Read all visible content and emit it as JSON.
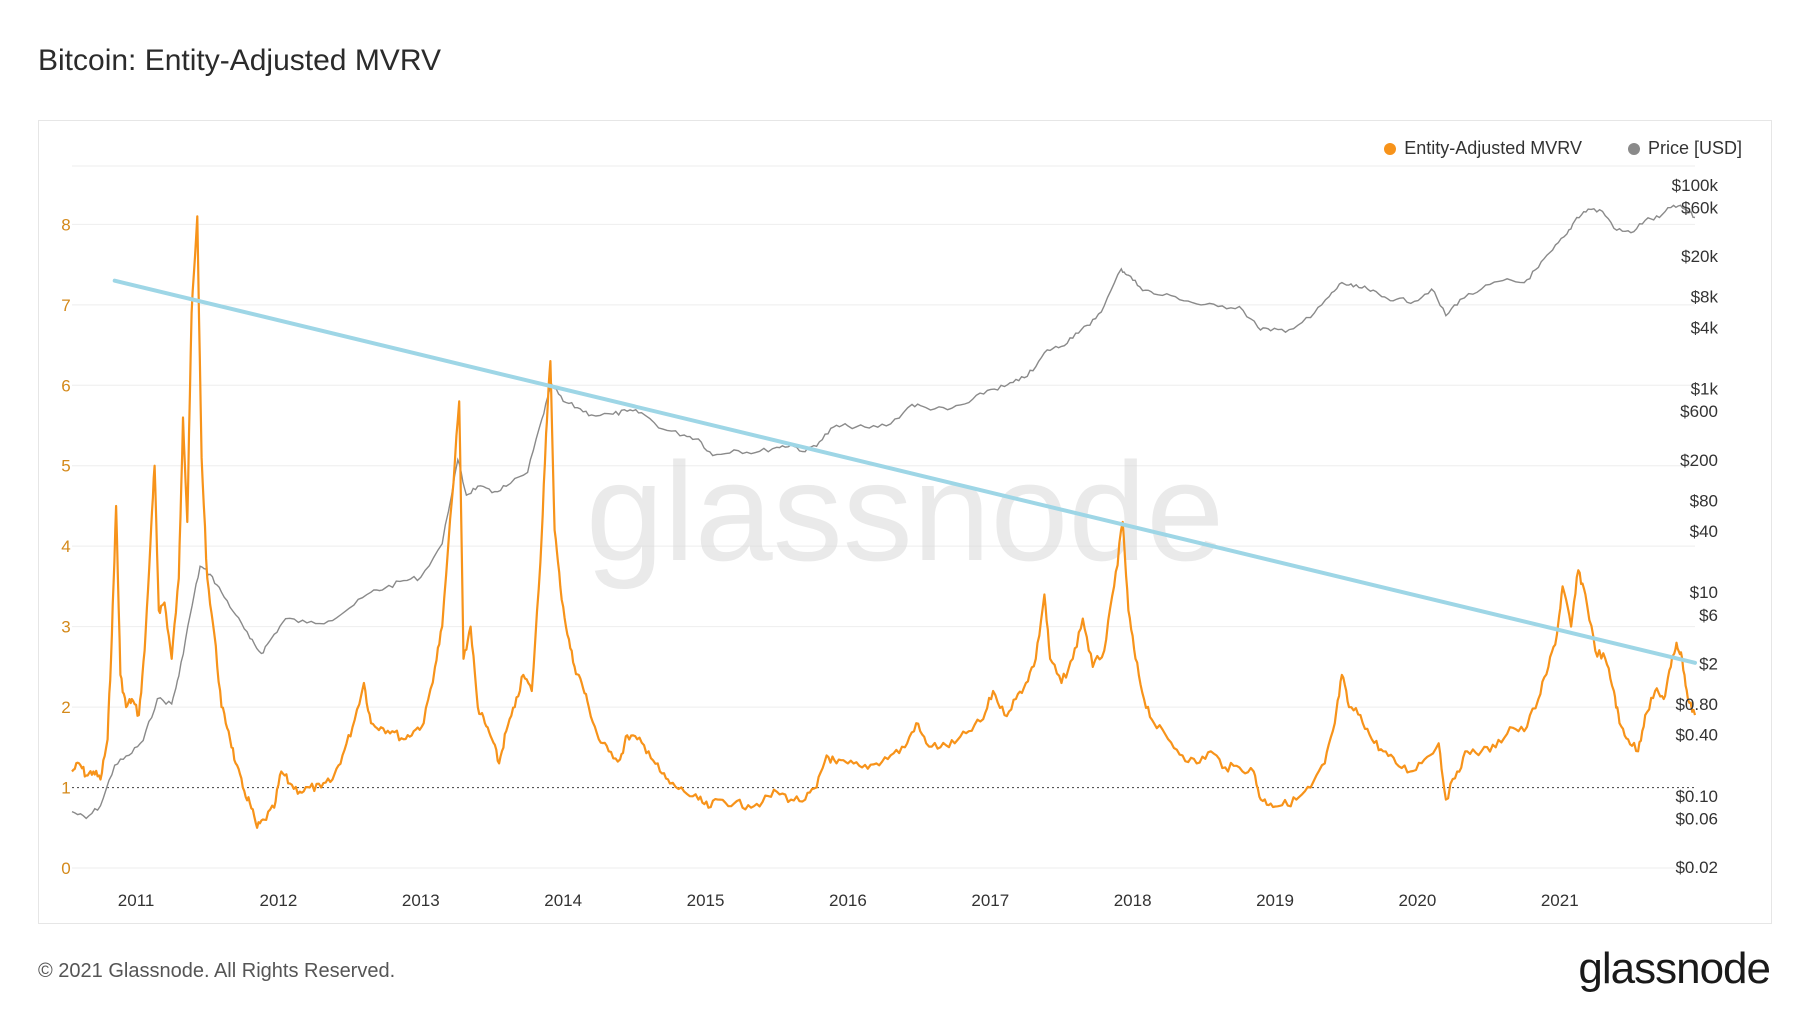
{
  "title": "Bitcoin: Entity-Adjusted MVRV",
  "footer": "© 2021 Glassnode. All Rights Reserved.",
  "brand": "glassnode",
  "watermark": "glassnode",
  "colors": {
    "mvrv": "#f7931a",
    "price": "#8a8a8a",
    "trend": "#9ed6e6",
    "grid": "#eeeeee",
    "left_axis": "#d4891a"
  },
  "chart_data": {
    "type": "line",
    "legend": [
      "Entity-Adjusted MVRV",
      "Price [USD]"
    ],
    "legend_position": "top-right",
    "grid": true,
    "x_ticks": [
      "2011",
      "2012",
      "2013",
      "2014",
      "2015",
      "2016",
      "2017",
      "2018",
      "2019",
      "2020",
      "2021"
    ],
    "x_range": [
      2010.55,
      2021.95
    ],
    "left_axis": {
      "ticks": [
        "0",
        "1",
        "2",
        "3",
        "4",
        "5",
        "6",
        "7",
        "8"
      ],
      "range": [
        0,
        8.8
      ]
    },
    "right_axis": {
      "scale": "log",
      "ticks": [
        "$100k",
        "$60k",
        "$20k",
        "$8k",
        "$4k",
        "$1k",
        "$600",
        "$200",
        "$80",
        "$40",
        "$10",
        "$6",
        "$2",
        "$0.80",
        "$0.40",
        "$0.10",
        "$0.06",
        "$0.02"
      ],
      "tick_values": [
        100000,
        60000,
        20000,
        8000,
        4000,
        1000,
        600,
        200,
        80,
        40,
        10,
        6,
        2,
        0.8,
        0.4,
        0.1,
        0.06,
        0.02
      ]
    },
    "reference_line": {
      "value": 1,
      "style": "dotted"
    },
    "trend_line": {
      "from": [
        2010.85,
        7.3
      ],
      "to": [
        2021.95,
        2.55
      ]
    },
    "series": [
      {
        "name": "Entity-Adjusted MVRV",
        "axis": "left",
        "points": [
          [
            2010.55,
            1.2
          ],
          [
            2010.6,
            1.3
          ],
          [
            2010.65,
            1.15
          ],
          [
            2010.7,
            1.2
          ],
          [
            2010.75,
            1.1
          ],
          [
            2010.8,
            1.6
          ],
          [
            2010.83,
            2.9
          ],
          [
            2010.86,
            4.5
          ],
          [
            2010.89,
            2.4
          ],
          [
            2010.93,
            2.0
          ],
          [
            2010.97,
            2.1
          ],
          [
            2011.02,
            1.9
          ],
          [
            2011.06,
            2.7
          ],
          [
            2011.1,
            4.0
          ],
          [
            2011.13,
            5.0
          ],
          [
            2011.16,
            3.2
          ],
          [
            2011.2,
            3.3
          ],
          [
            2011.25,
            2.6
          ],
          [
            2011.3,
            3.6
          ],
          [
            2011.33,
            5.6
          ],
          [
            2011.36,
            4.3
          ],
          [
            2011.39,
            6.9
          ],
          [
            2011.43,
            8.1
          ],
          [
            2011.46,
            5.1
          ],
          [
            2011.5,
            3.6
          ],
          [
            2011.55,
            2.9
          ],
          [
            2011.6,
            2.0
          ],
          [
            2011.65,
            1.7
          ],
          [
            2011.7,
            1.3
          ],
          [
            2011.75,
            1.0
          ],
          [
            2011.8,
            0.8
          ],
          [
            2011.85,
            0.5
          ],
          [
            2011.9,
            0.6
          ],
          [
            2011.97,
            0.75
          ],
          [
            2012.02,
            1.2
          ],
          [
            2012.08,
            1.05
          ],
          [
            2012.15,
            0.95
          ],
          [
            2012.22,
            1.0
          ],
          [
            2012.3,
            1.0
          ],
          [
            2012.38,
            1.1
          ],
          [
            2012.45,
            1.4
          ],
          [
            2012.52,
            1.75
          ],
          [
            2012.6,
            2.3
          ],
          [
            2012.65,
            1.8
          ],
          [
            2012.72,
            1.75
          ],
          [
            2012.8,
            1.7
          ],
          [
            2012.88,
            1.6
          ],
          [
            2012.95,
            1.7
          ],
          [
            2013.02,
            1.8
          ],
          [
            2013.1,
            2.5
          ],
          [
            2013.15,
            3.0
          ],
          [
            2013.22,
            4.6
          ],
          [
            2013.27,
            5.8
          ],
          [
            2013.3,
            2.6
          ],
          [
            2013.35,
            3.0
          ],
          [
            2013.4,
            2.0
          ],
          [
            2013.45,
            1.8
          ],
          [
            2013.5,
            1.6
          ],
          [
            2013.55,
            1.3
          ],
          [
            2013.6,
            1.7
          ],
          [
            2013.66,
            2.0
          ],
          [
            2013.72,
            2.4
          ],
          [
            2013.78,
            2.2
          ],
          [
            2013.84,
            3.8
          ],
          [
            2013.88,
            5.4
          ],
          [
            2013.91,
            6.3
          ],
          [
            2013.94,
            4.2
          ],
          [
            2013.98,
            3.5
          ],
          [
            2014.03,
            2.9
          ],
          [
            2014.08,
            2.5
          ],
          [
            2014.13,
            2.3
          ],
          [
            2014.18,
            2.0
          ],
          [
            2014.25,
            1.6
          ],
          [
            2014.32,
            1.45
          ],
          [
            2014.4,
            1.35
          ],
          [
            2014.45,
            1.65
          ],
          [
            2014.52,
            1.6
          ],
          [
            2014.6,
            1.45
          ],
          [
            2014.68,
            1.2
          ],
          [
            2014.75,
            1.05
          ],
          [
            2014.85,
            0.95
          ],
          [
            2014.95,
            0.85
          ],
          [
            2015.02,
            0.75
          ],
          [
            2015.1,
            0.85
          ],
          [
            2015.2,
            0.8
          ],
          [
            2015.3,
            0.78
          ],
          [
            2015.4,
            0.82
          ],
          [
            2015.5,
            0.95
          ],
          [
            2015.6,
            0.85
          ],
          [
            2015.7,
            0.85
          ],
          [
            2015.78,
            1.0
          ],
          [
            2015.85,
            1.4
          ],
          [
            2015.92,
            1.3
          ],
          [
            2016.0,
            1.3
          ],
          [
            2016.1,
            1.25
          ],
          [
            2016.2,
            1.3
          ],
          [
            2016.3,
            1.4
          ],
          [
            2016.4,
            1.5
          ],
          [
            2016.48,
            1.8
          ],
          [
            2016.55,
            1.55
          ],
          [
            2016.65,
            1.5
          ],
          [
            2016.75,
            1.55
          ],
          [
            2016.85,
            1.7
          ],
          [
            2016.95,
            1.85
          ],
          [
            2017.02,
            2.2
          ],
          [
            2017.1,
            1.9
          ],
          [
            2017.18,
            2.1
          ],
          [
            2017.25,
            2.3
          ],
          [
            2017.32,
            2.6
          ],
          [
            2017.38,
            3.4
          ],
          [
            2017.42,
            2.6
          ],
          [
            2017.5,
            2.3
          ],
          [
            2017.58,
            2.6
          ],
          [
            2017.65,
            3.1
          ],
          [
            2017.72,
            2.5
          ],
          [
            2017.8,
            2.7
          ],
          [
            2017.87,
            3.5
          ],
          [
            2017.93,
            4.3
          ],
          [
            2017.97,
            3.2
          ],
          [
            2018.02,
            2.6
          ],
          [
            2018.08,
            2.1
          ],
          [
            2018.15,
            1.8
          ],
          [
            2018.25,
            1.6
          ],
          [
            2018.35,
            1.4
          ],
          [
            2018.45,
            1.3
          ],
          [
            2018.55,
            1.45
          ],
          [
            2018.65,
            1.25
          ],
          [
            2018.75,
            1.25
          ],
          [
            2018.85,
            1.2
          ],
          [
            2018.9,
            0.85
          ],
          [
            2018.97,
            0.8
          ],
          [
            2019.05,
            0.78
          ],
          [
            2019.15,
            0.85
          ],
          [
            2019.25,
            1.0
          ],
          [
            2019.35,
            1.3
          ],
          [
            2019.42,
            1.8
          ],
          [
            2019.47,
            2.4
          ],
          [
            2019.52,
            2.0
          ],
          [
            2019.6,
            1.9
          ],
          [
            2019.68,
            1.6
          ],
          [
            2019.76,
            1.45
          ],
          [
            2019.85,
            1.3
          ],
          [
            2019.95,
            1.2
          ],
          [
            2020.05,
            1.35
          ],
          [
            2020.15,
            1.55
          ],
          [
            2020.2,
            0.85
          ],
          [
            2020.28,
            1.2
          ],
          [
            2020.35,
            1.45
          ],
          [
            2020.45,
            1.45
          ],
          [
            2020.55,
            1.5
          ],
          [
            2020.65,
            1.75
          ],
          [
            2020.75,
            1.7
          ],
          [
            2020.85,
            2.1
          ],
          [
            2020.92,
            2.5
          ],
          [
            2020.98,
            2.9
          ],
          [
            2021.02,
            3.5
          ],
          [
            2021.08,
            3.0
          ],
          [
            2021.13,
            3.7
          ],
          [
            2021.18,
            3.4
          ],
          [
            2021.25,
            2.7
          ],
          [
            2021.32,
            2.6
          ],
          [
            2021.38,
            2.2
          ],
          [
            2021.42,
            1.8
          ],
          [
            2021.48,
            1.6
          ],
          [
            2021.55,
            1.45
          ],
          [
            2021.6,
            1.9
          ],
          [
            2021.67,
            2.2
          ],
          [
            2021.73,
            2.1
          ],
          [
            2021.78,
            2.5
          ],
          [
            2021.82,
            2.8
          ],
          [
            2021.86,
            2.6
          ],
          [
            2021.9,
            2.1
          ],
          [
            2021.95,
            1.9
          ]
        ]
      },
      {
        "name": "Price [USD]",
        "axis": "right",
        "points": [
          [
            2010.55,
            0.07
          ],
          [
            2010.65,
            0.06
          ],
          [
            2010.75,
            0.08
          ],
          [
            2010.85,
            0.2
          ],
          [
            2010.95,
            0.25
          ],
          [
            2011.05,
            0.35
          ],
          [
            2011.15,
            0.9
          ],
          [
            2011.25,
            0.8
          ],
          [
            2011.3,
            1.5
          ],
          [
            2011.38,
            6
          ],
          [
            2011.45,
            18
          ],
          [
            2011.52,
            15
          ],
          [
            2011.6,
            10
          ],
          [
            2011.7,
            6
          ],
          [
            2011.8,
            3.5
          ],
          [
            2011.88,
            2.5
          ],
          [
            2011.95,
            3.5
          ],
          [
            2012.05,
            5.5
          ],
          [
            2012.2,
            5
          ],
          [
            2012.35,
            5.2
          ],
          [
            2012.5,
            7
          ],
          [
            2012.65,
            10
          ],
          [
            2012.75,
            11
          ],
          [
            2012.88,
            13
          ],
          [
            2013.0,
            14
          ],
          [
            2013.15,
            30
          ],
          [
            2013.26,
            200
          ],
          [
            2013.32,
            90
          ],
          [
            2013.4,
            110
          ],
          [
            2013.5,
            95
          ],
          [
            2013.6,
            110
          ],
          [
            2013.75,
            150
          ],
          [
            2013.85,
            500
          ],
          [
            2013.92,
            1100
          ],
          [
            2014.0,
            750
          ],
          [
            2014.1,
            650
          ],
          [
            2014.2,
            550
          ],
          [
            2014.35,
            560
          ],
          [
            2014.45,
            600
          ],
          [
            2014.55,
            580
          ],
          [
            2014.7,
            400
          ],
          [
            2014.85,
            350
          ],
          [
            2014.95,
            320
          ],
          [
            2015.05,
            220
          ],
          [
            2015.2,
            250
          ],
          [
            2015.35,
            235
          ],
          [
            2015.5,
            265
          ],
          [
            2015.6,
            280
          ],
          [
            2015.7,
            240
          ],
          [
            2015.8,
            300
          ],
          [
            2015.9,
            420
          ],
          [
            2016.0,
            430
          ],
          [
            2016.15,
            410
          ],
          [
            2016.3,
            450
          ],
          [
            2016.45,
            700
          ],
          [
            2016.55,
            650
          ],
          [
            2016.7,
            620
          ],
          [
            2016.85,
            730
          ],
          [
            2016.98,
            960
          ],
          [
            2017.1,
            1050
          ],
          [
            2017.2,
            1200
          ],
          [
            2017.3,
            1500
          ],
          [
            2017.4,
            2400
          ],
          [
            2017.5,
            2600
          ],
          [
            2017.6,
            3500
          ],
          [
            2017.7,
            4200
          ],
          [
            2017.8,
            6500
          ],
          [
            2017.92,
            15000
          ],
          [
            2017.97,
            13000
          ],
          [
            2018.05,
            10000
          ],
          [
            2018.15,
            8500
          ],
          [
            2018.3,
            8000
          ],
          [
            2018.45,
            6800
          ],
          [
            2018.6,
            6400
          ],
          [
            2018.75,
            6400
          ],
          [
            2018.88,
            4000
          ],
          [
            2018.97,
            3700
          ],
          [
            2019.1,
            3800
          ],
          [
            2019.25,
            5000
          ],
          [
            2019.38,
            8000
          ],
          [
            2019.47,
            11000
          ],
          [
            2019.55,
            10000
          ],
          [
            2019.65,
            9500
          ],
          [
            2019.75,
            8000
          ],
          [
            2019.85,
            7500
          ],
          [
            2019.98,
            7200
          ],
          [
            2020.1,
            9500
          ],
          [
            2020.2,
            5200
          ],
          [
            2020.3,
            7500
          ],
          [
            2020.45,
            9500
          ],
          [
            2020.6,
            11500
          ],
          [
            2020.75,
            11000
          ],
          [
            2020.85,
            15500
          ],
          [
            2020.95,
            23000
          ],
          [
            2021.05,
            33000
          ],
          [
            2021.12,
            48000
          ],
          [
            2021.2,
            58000
          ],
          [
            2021.3,
            55000
          ],
          [
            2021.4,
            36000
          ],
          [
            2021.5,
            34000
          ],
          [
            2021.6,
            45000
          ],
          [
            2021.7,
            48000
          ],
          [
            2021.8,
            63000
          ],
          [
            2021.88,
            58000
          ],
          [
            2021.95,
            48000
          ]
        ]
      }
    ]
  }
}
